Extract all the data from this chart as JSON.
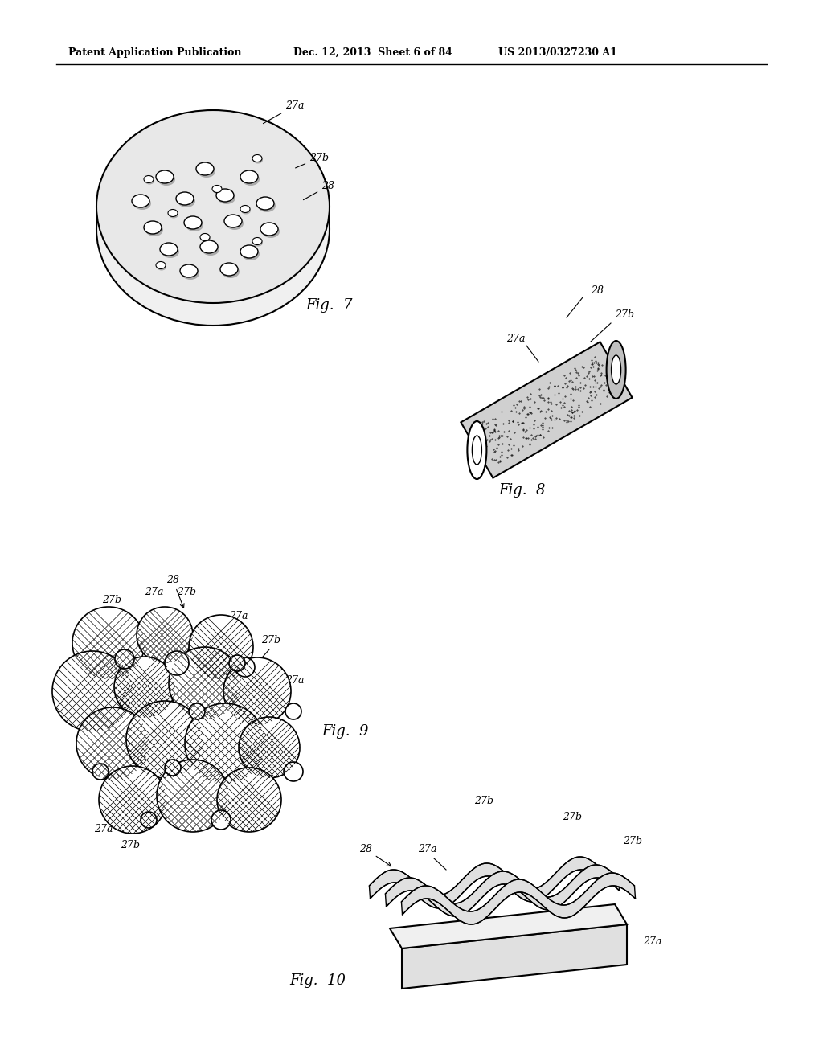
{
  "header_left": "Patent Application Publication",
  "header_mid": "Dec. 12, 2013  Sheet 6 of 84",
  "header_right": "US 2013/0327230 A1",
  "bg_color": "#ffffff",
  "line_color": "#000000",
  "fig7_label": "Fig.  7",
  "fig8_label": "Fig.  8",
  "fig9_label": "Fig.  9",
  "fig10_label": "Fig.  10"
}
